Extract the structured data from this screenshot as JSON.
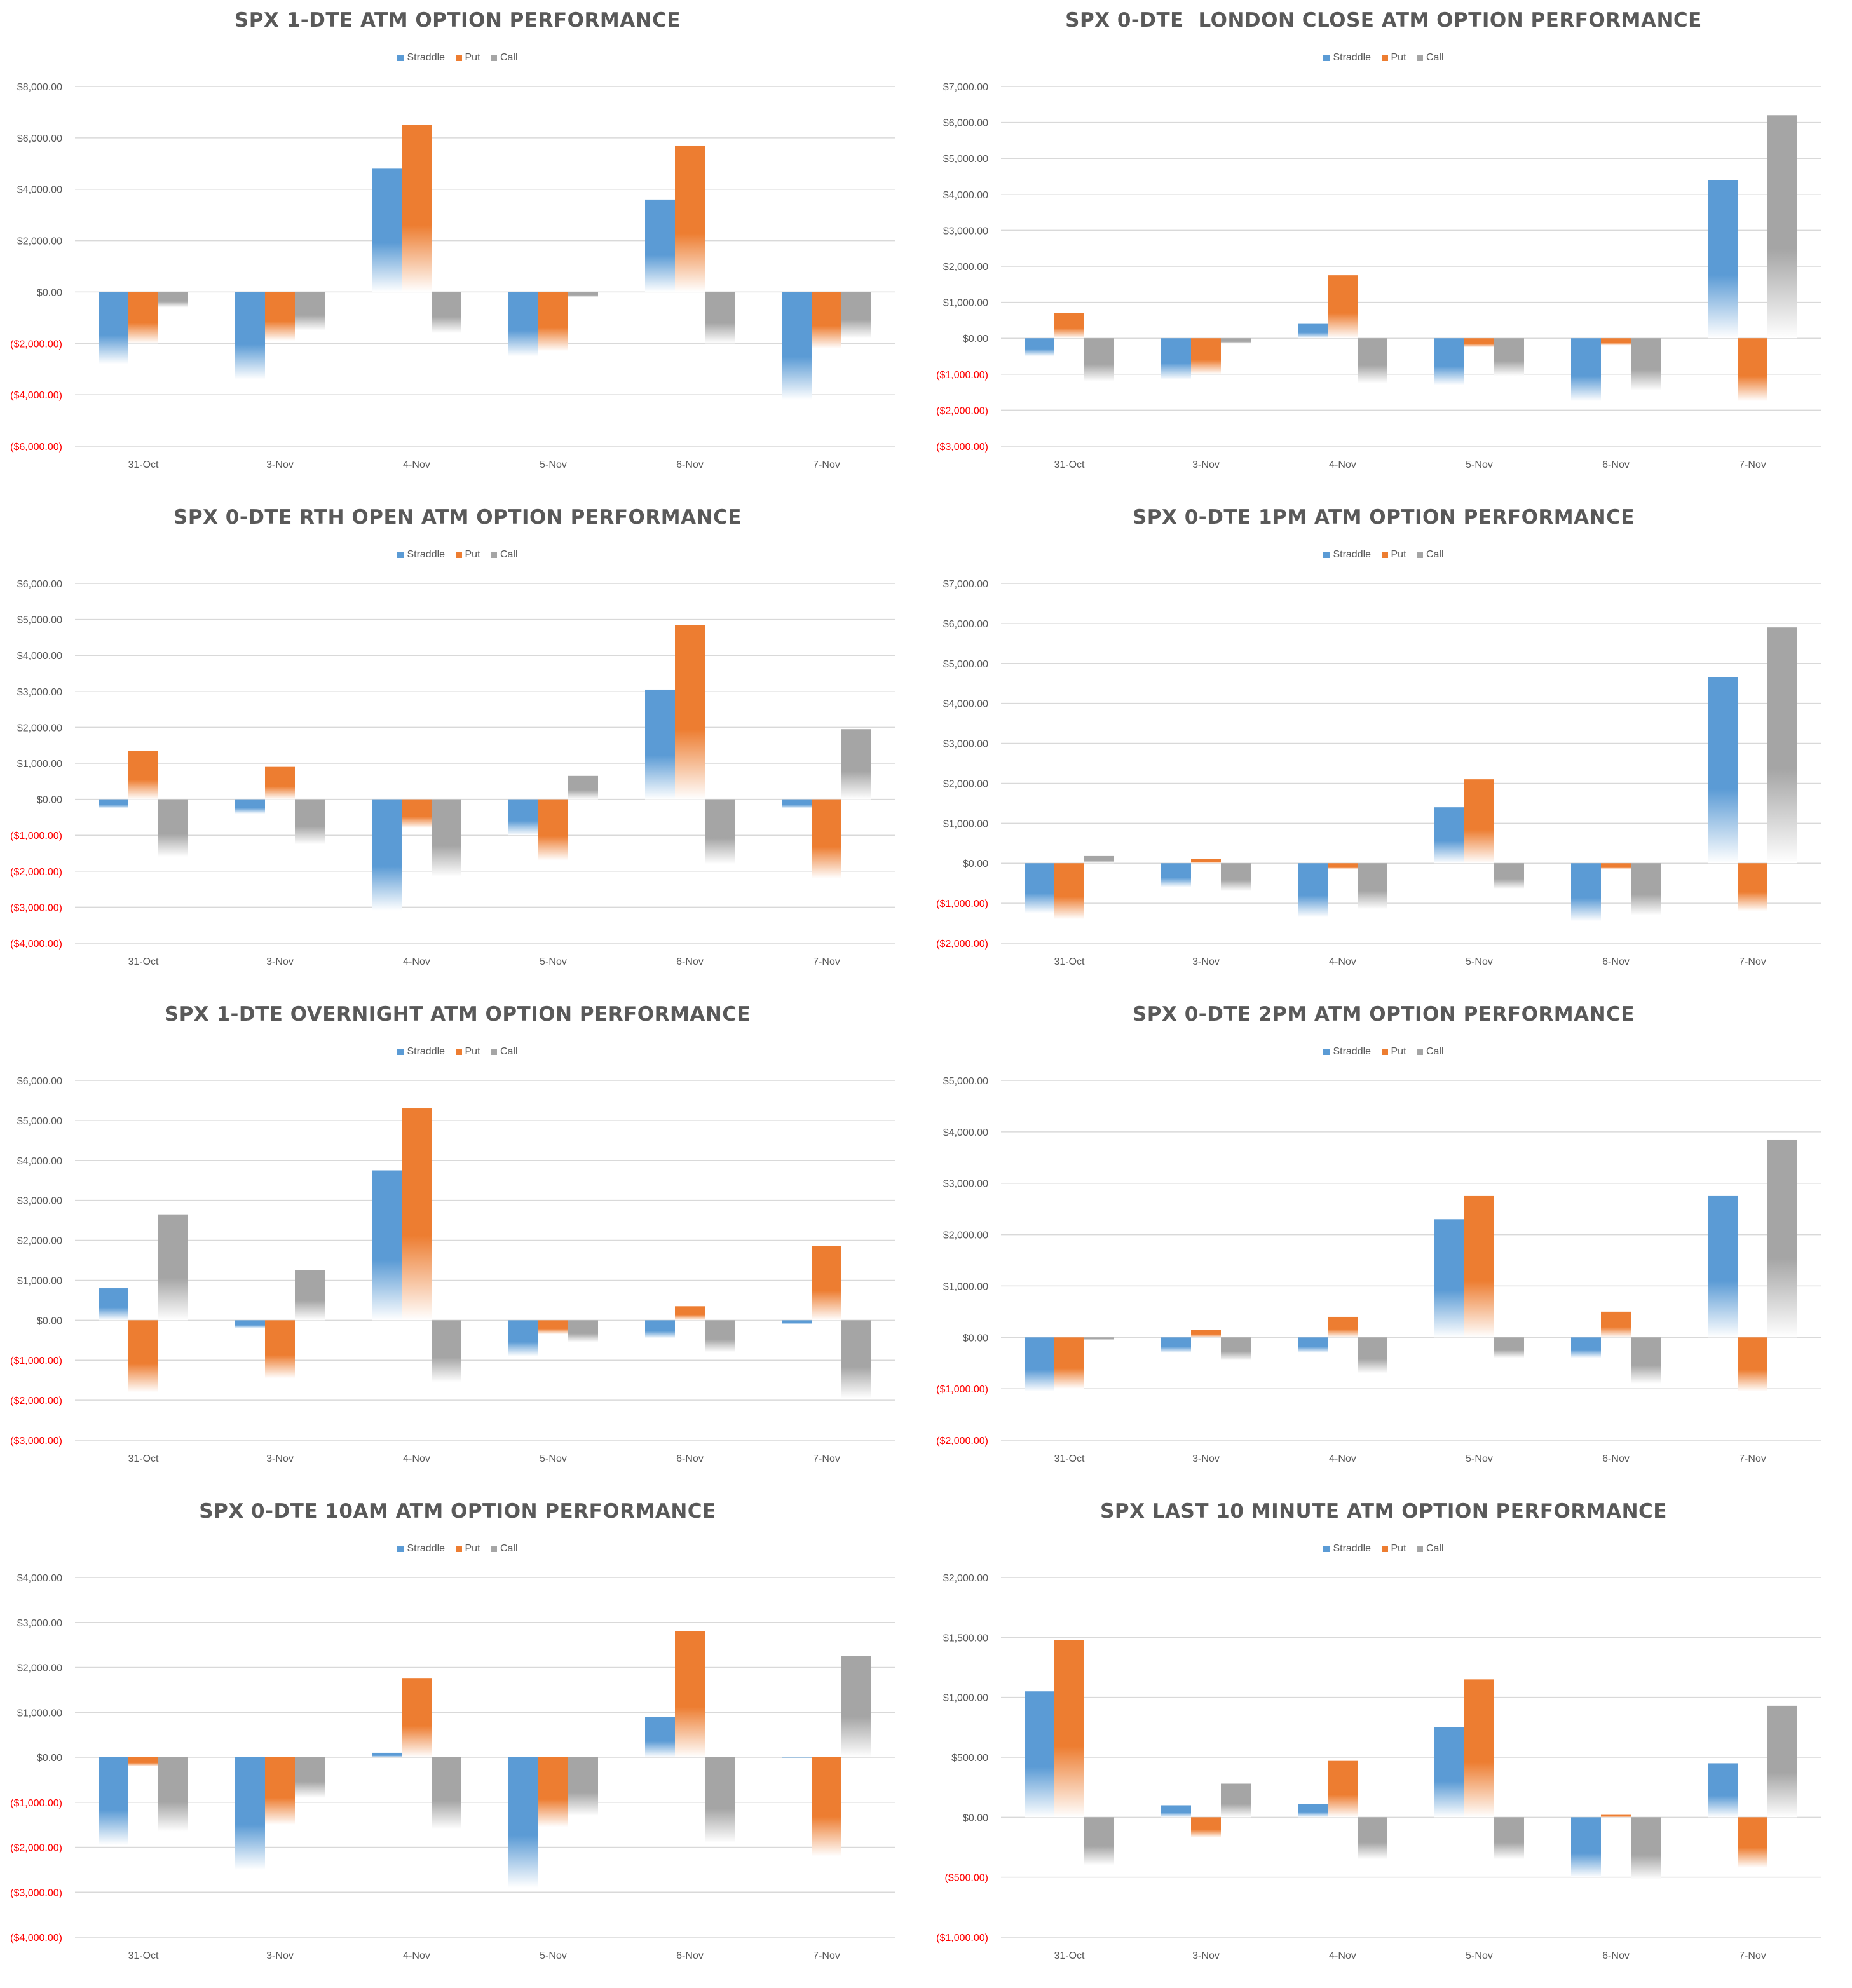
{
  "colors": {
    "straddle": "#5b9bd5",
    "put": "#ed7d31",
    "call": "#a5a5a5",
    "negative_label": "#ff0000",
    "axis_label": "#595959"
  },
  "legend": [
    "Straddle",
    "Put",
    "Call"
  ],
  "chart_data": [
    {
      "type": "bar",
      "title": "SPX 1-DTE ATM OPTION PERFORMANCE",
      "categories": [
        "31-Oct",
        "3-Nov",
        "4-Nov",
        "5-Nov",
        "6-Nov",
        "7-Nov"
      ],
      "ylim": [
        -6000,
        8000
      ],
      "yticks": [
        "$8,000.00",
        "$6,000.00",
        "$4,000.00",
        "$2,000.00",
        "$0.00",
        "($2,000.00)",
        "($4,000.00)",
        "($6,000.00)"
      ],
      "series": [
        {
          "name": "Straddle",
          "values": [
            -2800,
            -3400,
            4800,
            -2500,
            3600,
            -4200
          ]
        },
        {
          "name": "Put",
          "values": [
            -2000,
            -1900,
            6500,
            -2300,
            5700,
            -2200
          ]
        },
        {
          "name": "Call",
          "values": [
            -600,
            -1500,
            -1600,
            -200,
            -2000,
            -1800
          ]
        }
      ]
    },
    {
      "type": "bar",
      "title": "SPX 0-DTE  LONDON CLOSE ATM OPTION PERFORMANCE",
      "categories": [
        "31-Oct",
        "3-Nov",
        "4-Nov",
        "5-Nov",
        "6-Nov",
        "7-Nov"
      ],
      "ylim": [
        -3000,
        7000
      ],
      "yticks": [
        "$7,000.00",
        "$6,000.00",
        "$5,000.00",
        "$4,000.00",
        "$3,000.00",
        "$2,000.00",
        "$1,000.00",
        "$0.00",
        "($1,000.00)",
        "($2,000.00)",
        "($3,000.00)"
      ],
      "series": [
        {
          "name": "Straddle",
          "values": [
            -500,
            -1150,
            400,
            -1300,
            -1750,
            4400
          ]
        },
        {
          "name": "Put",
          "values": [
            700,
            -1000,
            1750,
            -250,
            -200,
            -1750
          ]
        },
        {
          "name": "Call",
          "values": [
            -1200,
            -150,
            -1250,
            -1050,
            -1450,
            6200
          ]
        }
      ]
    },
    {
      "type": "bar",
      "title": "SPX 0-DTE RTH OPEN ATM OPTION PERFORMANCE",
      "categories": [
        "31-Oct",
        "3-Nov",
        "4-Nov",
        "5-Nov",
        "6-Nov",
        "7-Nov"
      ],
      "ylim": [
        -4000,
        6000
      ],
      "yticks": [
        "$6,000.00",
        "$5,000.00",
        "$4,000.00",
        "$3,000.00",
        "$2,000.00",
        "$1,000.00",
        "$0.00",
        "($1,000.00)",
        "($2,000.00)",
        "($3,000.00)",
        "($4,000.00)"
      ],
      "series": [
        {
          "name": "Straddle",
          "values": [
            -250,
            -400,
            -3100,
            -1000,
            3050,
            -250
          ]
        },
        {
          "name": "Put",
          "values": [
            1350,
            900,
            -800,
            -1700,
            4850,
            -2200
          ]
        },
        {
          "name": "Call",
          "values": [
            -1600,
            -1250,
            -2150,
            650,
            -1800,
            1950
          ]
        }
      ]
    },
    {
      "type": "bar",
      "title": "SPX 0-DTE 1PM ATM OPTION PERFORMANCE",
      "categories": [
        "31-Oct",
        "3-Nov",
        "4-Nov",
        "5-Nov",
        "6-Nov",
        "7-Nov"
      ],
      "ylim": [
        -2000,
        7000
      ],
      "yticks": [
        "$7,000.00",
        "$6,000.00",
        "$5,000.00",
        "$4,000.00",
        "$3,000.00",
        "$2,000.00",
        "$1,000.00",
        "$0.00",
        "($1,000.00)",
        "($2,000.00)"
      ],
      "series": [
        {
          "name": "Straddle",
          "values": [
            -1250,
            -600,
            -1350,
            1400,
            -1450,
            4650
          ]
        },
        {
          "name": "Put",
          "values": [
            -1400,
            100,
            -150,
            2100,
            -150,
            -1200
          ]
        },
        {
          "name": "Call",
          "values": [
            180,
            -700,
            -1150,
            -650,
            -1300,
            5900
          ]
        }
      ]
    },
    {
      "type": "bar",
      "title": "SPX 1-DTE OVERNIGHT ATM OPTION PERFORMANCE",
      "categories": [
        "31-Oct",
        "3-Nov",
        "4-Nov",
        "5-Nov",
        "6-Nov",
        "7-Nov"
      ],
      "ylim": [
        -3000,
        6000
      ],
      "yticks": [
        "$6,000.00",
        "$5,000.00",
        "$4,000.00",
        "$3,000.00",
        "$2,000.00",
        "$1,000.00",
        "$0.00",
        "($1,000.00)",
        "($2,000.00)",
        "($3,000.00)"
      ],
      "series": [
        {
          "name": "Straddle",
          "values": [
            800,
            -200,
            3750,
            -900,
            -450,
            -100
          ]
        },
        {
          "name": "Put",
          "values": [
            -1800,
            -1450,
            5300,
            -350,
            350,
            1850
          ]
        },
        {
          "name": "Call",
          "values": [
            2650,
            1250,
            -1550,
            -550,
            -800,
            -1950
          ]
        }
      ]
    },
    {
      "type": "bar",
      "title": "SPX 0-DTE 2PM ATM OPTION PERFORMANCE",
      "categories": [
        "31-Oct",
        "3-Nov",
        "4-Nov",
        "5-Nov",
        "6-Nov",
        "7-Nov"
      ],
      "ylim": [
        -2000,
        5000
      ],
      "yticks": [
        "$5,000.00",
        "$4,000.00",
        "$3,000.00",
        "$2,000.00",
        "$1,000.00",
        "$0.00",
        "($1,000.00)",
        "($2,000.00)"
      ],
      "series": [
        {
          "name": "Straddle",
          "values": [
            -1050,
            -300,
            -300,
            2300,
            -400,
            2750
          ]
        },
        {
          "name": "Put",
          "values": [
            -1000,
            150,
            400,
            2750,
            500,
            -1050
          ]
        },
        {
          "name": "Call",
          "values": [
            -50,
            -450,
            -700,
            -400,
            -900,
            3850
          ]
        }
      ]
    },
    {
      "type": "bar",
      "title": "SPX 0-DTE 10AM ATM OPTION PERFORMANCE",
      "categories": [
        "31-Oct",
        "3-Nov",
        "4-Nov",
        "5-Nov",
        "6-Nov",
        "7-Nov"
      ],
      "ylim": [
        -4000,
        4000
      ],
      "yticks": [
        "$4,000.00",
        "$3,000.00",
        "$2,000.00",
        "$1,000.00",
        "$0.00",
        "($1,000.00)",
        "($2,000.00)",
        "($3,000.00)",
        "($4,000.00)"
      ],
      "series": [
        {
          "name": "Straddle",
          "values": [
            -1950,
            -2500,
            100,
            -2900,
            900,
            0
          ]
        },
        {
          "name": "Put",
          "values": [
            -200,
            -1500,
            1750,
            -1550,
            2800,
            -2200
          ]
        },
        {
          "name": "Call",
          "values": [
            -1650,
            -900,
            -1600,
            -1300,
            -1900,
            2250
          ]
        }
      ]
    },
    {
      "type": "bar",
      "title": "SPX LAST 10 MINUTE ATM OPTION PERFORMANCE",
      "categories": [
        "31-Oct",
        "3-Nov",
        "4-Nov",
        "5-Nov",
        "6-Nov",
        "7-Nov"
      ],
      "ylim": [
        -1000,
        2000
      ],
      "yticks": [
        "$2,000.00",
        "$1,500.00",
        "$1,000.00",
        "$500.00",
        "$0.00",
        "($500.00)",
        "($1,000.00)"
      ],
      "series": [
        {
          "name": "Straddle",
          "values": [
            1050,
            100,
            110,
            750,
            -500,
            450
          ]
        },
        {
          "name": "Put",
          "values": [
            1480,
            -170,
            470,
            1150,
            20,
            -420
          ]
        },
        {
          "name": "Call",
          "values": [
            -400,
            280,
            -350,
            -350,
            -520,
            930
          ]
        }
      ]
    }
  ]
}
